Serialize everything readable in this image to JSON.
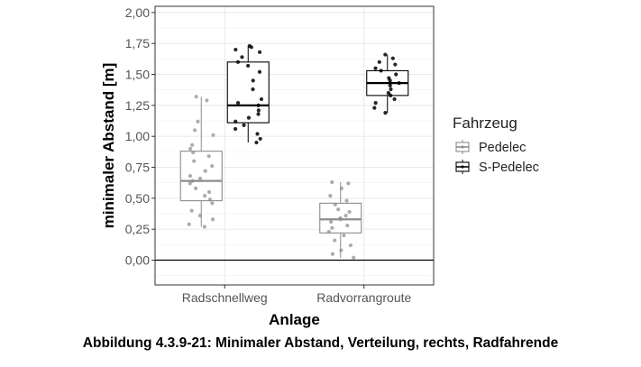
{
  "caption": "Abbildung 4.3.9-21: Minimaler Abstand, Verteilung, rechts, Radfahrende",
  "chart_data": {
    "type": "boxplot",
    "title": "",
    "xlabel": "Anlage",
    "ylabel": "minimaler Abstand [m]",
    "ylim": [
      -0.2,
      2.05
    ],
    "y_ticks": [
      "0,00",
      "0,25",
      "0,50",
      "0,75",
      "1,00",
      "1,25",
      "1,50",
      "1,75",
      "2,00"
    ],
    "categories": [
      "Radschnellweg",
      "Radvorrangroute"
    ],
    "reference_line": 0,
    "grid": true,
    "legend": {
      "title": "Fahrzeug",
      "position": "right"
    },
    "series": [
      {
        "name": "Pedelec",
        "color": "#8c8c8c",
        "boxes": [
          {
            "category": "Radschnellweg",
            "min": 0.27,
            "q1": 0.48,
            "median": 0.64,
            "q3": 0.88,
            "max": 1.32,
            "points": [
              1.32,
              1.29,
              1.12,
              1.05,
              1.01,
              0.93,
              0.9,
              0.87,
              0.84,
              0.8,
              0.76,
              0.72,
              0.68,
              0.66,
              0.64,
              0.62,
              0.58,
              0.55,
              0.52,
              0.49,
              0.46,
              0.4,
              0.36,
              0.33,
              0.29,
              0.27
            ]
          },
          {
            "category": "Radvorrangroute",
            "min": 0.02,
            "q1": 0.22,
            "median": 0.33,
            "q3": 0.46,
            "max": 0.63,
            "points": [
              0.63,
              0.62,
              0.58,
              0.52,
              0.48,
              0.45,
              0.41,
              0.39,
              0.36,
              0.34,
              0.33,
              0.31,
              0.28,
              0.26,
              0.23,
              0.2,
              0.16,
              0.12,
              0.08,
              0.05,
              0.02
            ]
          }
        ]
      },
      {
        "name": "S-Pedelec",
        "color": "#000000",
        "boxes": [
          {
            "category": "Radschnellweg",
            "min": 0.95,
            "q1": 1.11,
            "median": 1.25,
            "q3": 1.6,
            "max": 1.73,
            "points": [
              1.73,
              1.72,
              1.7,
              1.68,
              1.64,
              1.6,
              1.57,
              1.52,
              1.45,
              1.38,
              1.3,
              1.27,
              1.25,
              1.21,
              1.18,
              1.15,
              1.12,
              1.09,
              1.06,
              1.02,
              0.98,
              0.95
            ]
          },
          {
            "category": "Radvorrangroute",
            "min": 1.19,
            "q1": 1.33,
            "median": 1.43,
            "q3": 1.53,
            "max": 1.66,
            "points": [
              1.66,
              1.63,
              1.6,
              1.58,
              1.55,
              1.53,
              1.5,
              1.47,
              1.45,
              1.43,
              1.41,
              1.38,
              1.35,
              1.33,
              1.3,
              1.27,
              1.23,
              1.19
            ]
          }
        ]
      }
    ]
  }
}
